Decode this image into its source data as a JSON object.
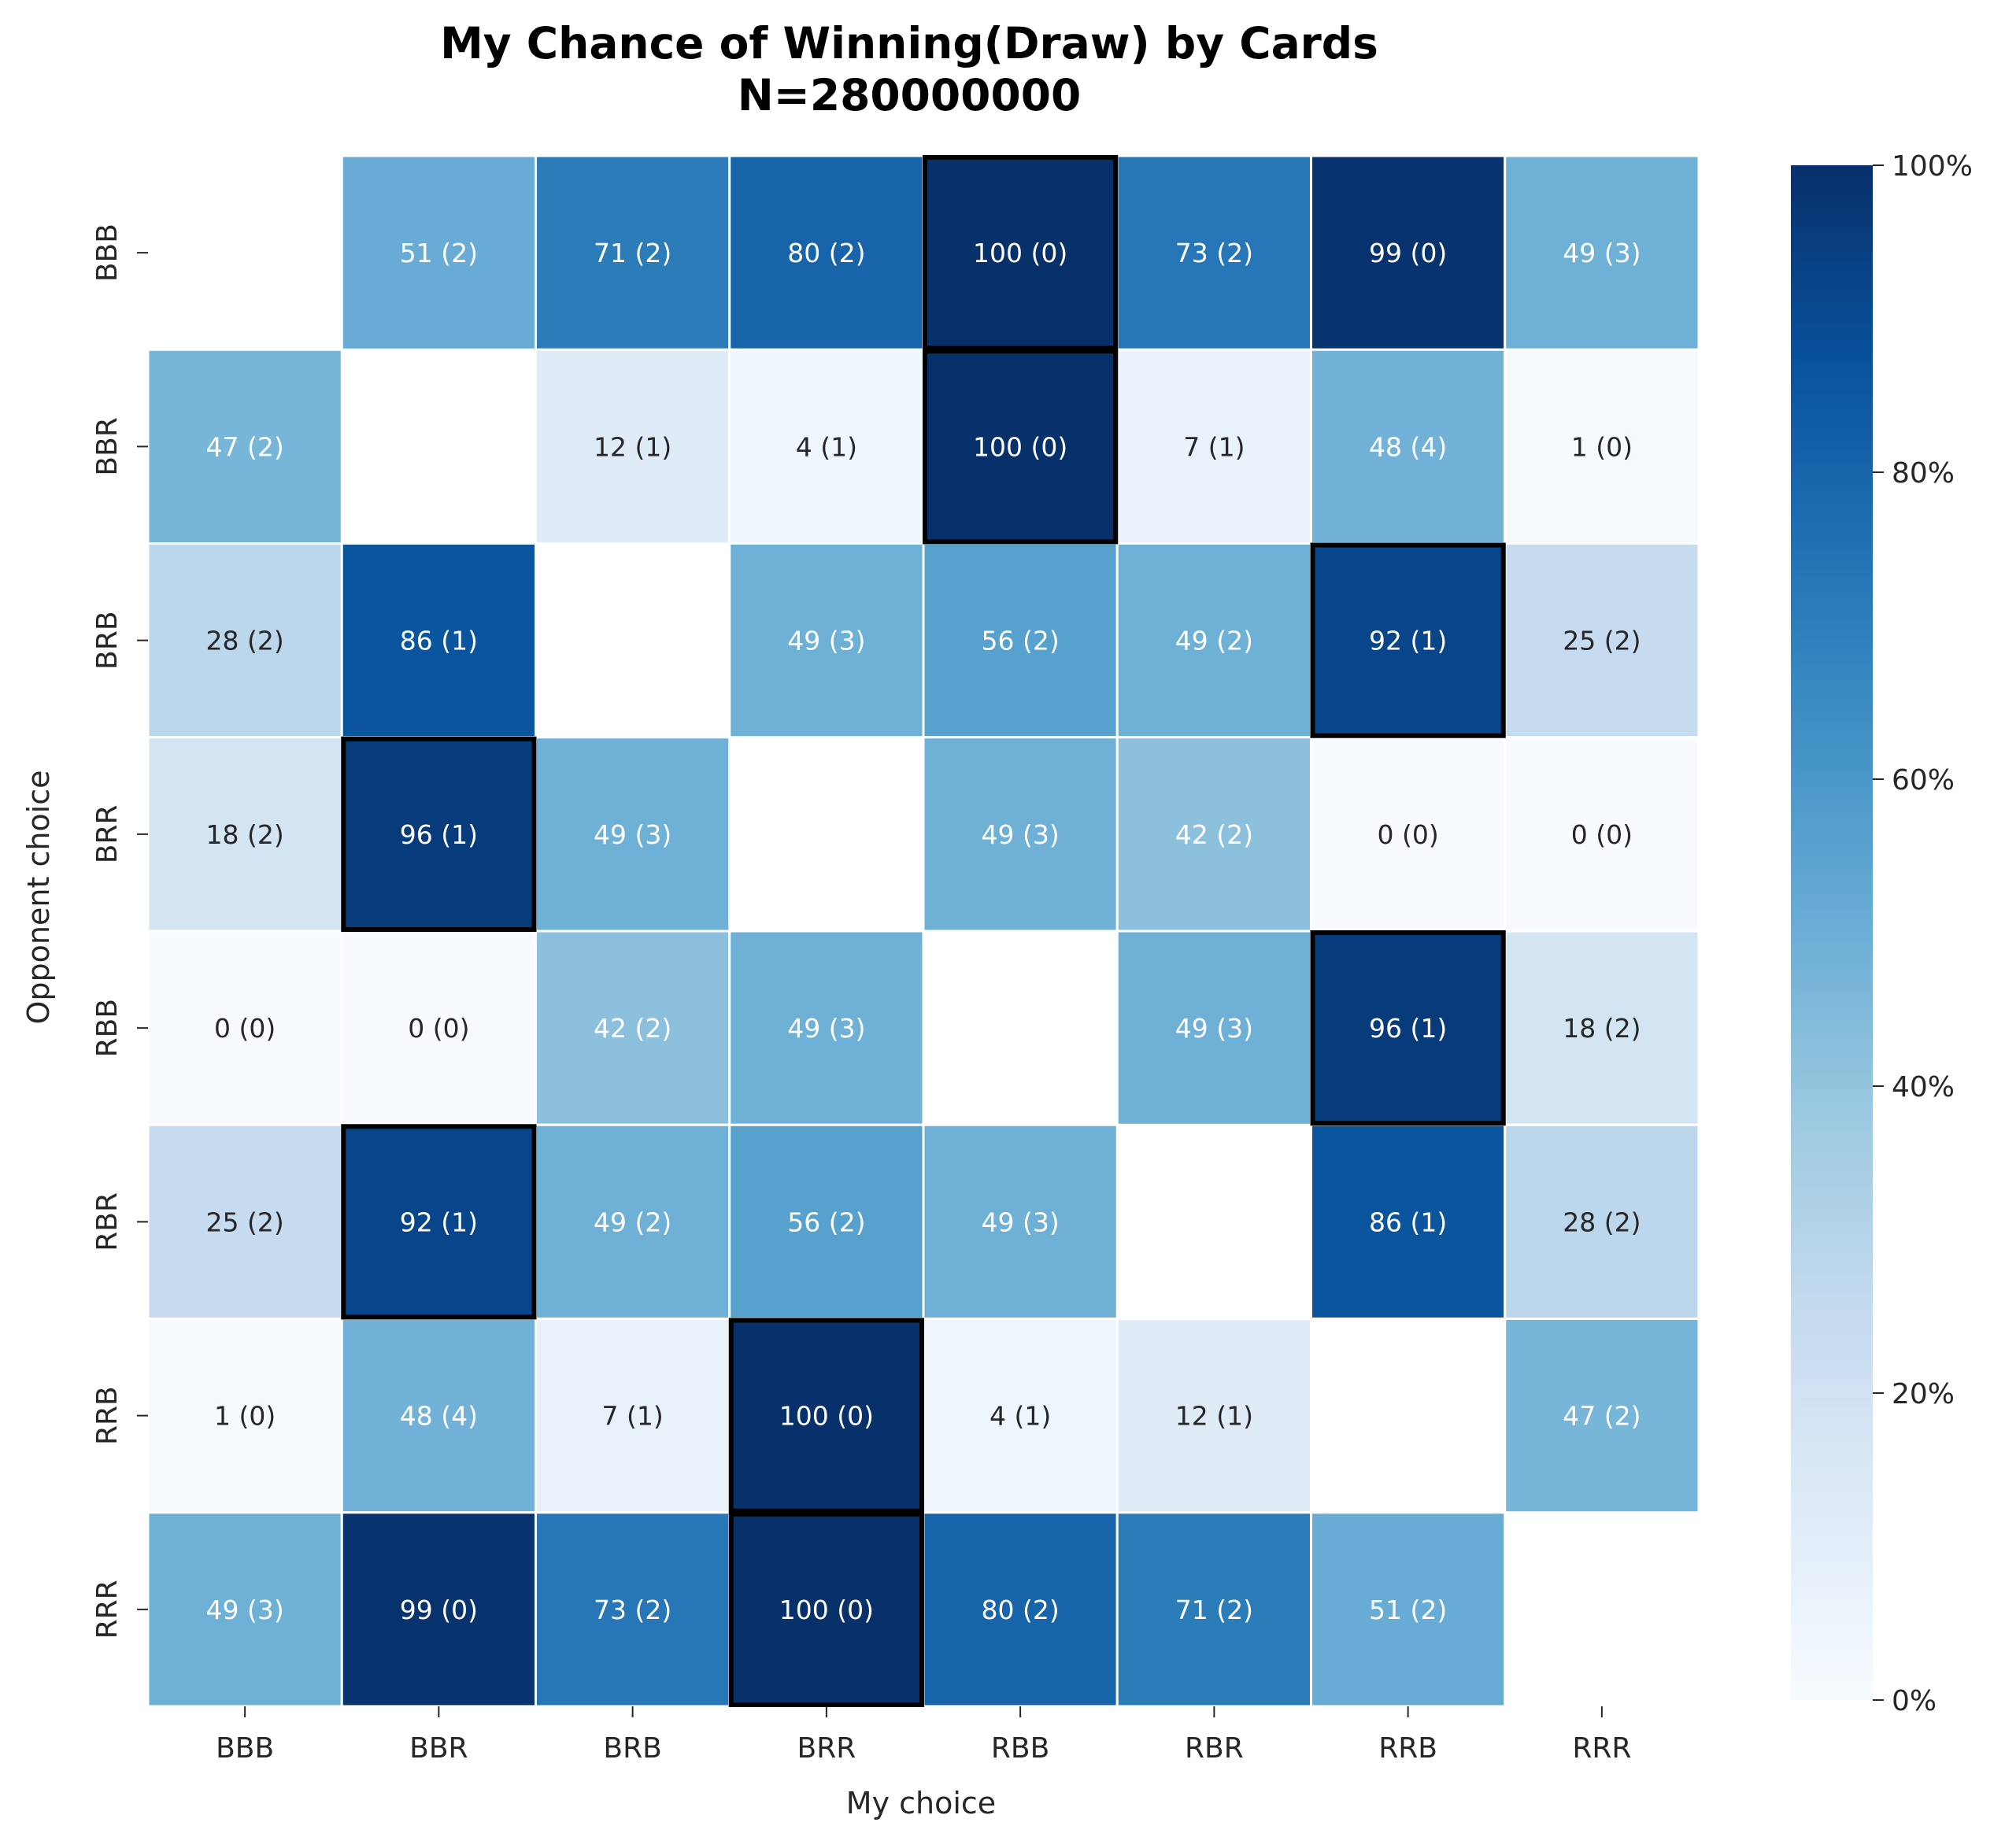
{
  "chart_data": {
    "type": "heatmap",
    "title": "My Chance of Winning(Draw) by Cards",
    "subtitle": "N=280000000",
    "xlabel": "My choice",
    "ylabel": "Opponent choice",
    "x_categories": [
      "BBB",
      "BBR",
      "BRB",
      "BRR",
      "RBB",
      "RBR",
      "RRB",
      "RRR"
    ],
    "y_categories": [
      "BBB",
      "BBR",
      "BRB",
      "BRR",
      "RBB",
      "RBR",
      "RRB",
      "RRR"
    ],
    "colormap": "Blues",
    "vmin": 0,
    "vmax": 100,
    "colorbar_ticks": [
      "0%",
      "20%",
      "40%",
      "60%",
      "80%",
      "100%"
    ],
    "win": [
      [
        null,
        51,
        71,
        80,
        100,
        73,
        99,
        49
      ],
      [
        47,
        null,
        12,
        4,
        100,
        7,
        48,
        1
      ],
      [
        28,
        86,
        null,
        49,
        56,
        49,
        92,
        25
      ],
      [
        18,
        96,
        49,
        null,
        49,
        42,
        0,
        0
      ],
      [
        0,
        0,
        42,
        49,
        null,
        49,
        96,
        18
      ],
      [
        25,
        92,
        49,
        56,
        49,
        null,
        86,
        28
      ],
      [
        1,
        48,
        7,
        100,
        4,
        12,
        null,
        47
      ],
      [
        49,
        99,
        73,
        100,
        80,
        71,
        51,
        null
      ]
    ],
    "draw": [
      [
        null,
        2,
        2,
        2,
        0,
        2,
        0,
        3
      ],
      [
        2,
        null,
        1,
        1,
        0,
        1,
        4,
        0
      ],
      [
        2,
        1,
        null,
        3,
        2,
        2,
        1,
        2
      ],
      [
        2,
        1,
        3,
        null,
        3,
        2,
        0,
        0
      ],
      [
        0,
        0,
        2,
        3,
        null,
        3,
        1,
        2
      ],
      [
        2,
        1,
        2,
        2,
        3,
        null,
        1,
        2
      ],
      [
        0,
        4,
        1,
        0,
        1,
        1,
        null,
        2
      ],
      [
        3,
        0,
        2,
        0,
        2,
        2,
        2,
        null
      ]
    ],
    "highlighted_cells": [
      [
        0,
        4
      ],
      [
        1,
        4
      ],
      [
        2,
        6
      ],
      [
        3,
        1
      ],
      [
        4,
        6
      ],
      [
        5,
        1
      ],
      [
        6,
        3
      ],
      [
        7,
        3
      ]
    ]
  }
}
